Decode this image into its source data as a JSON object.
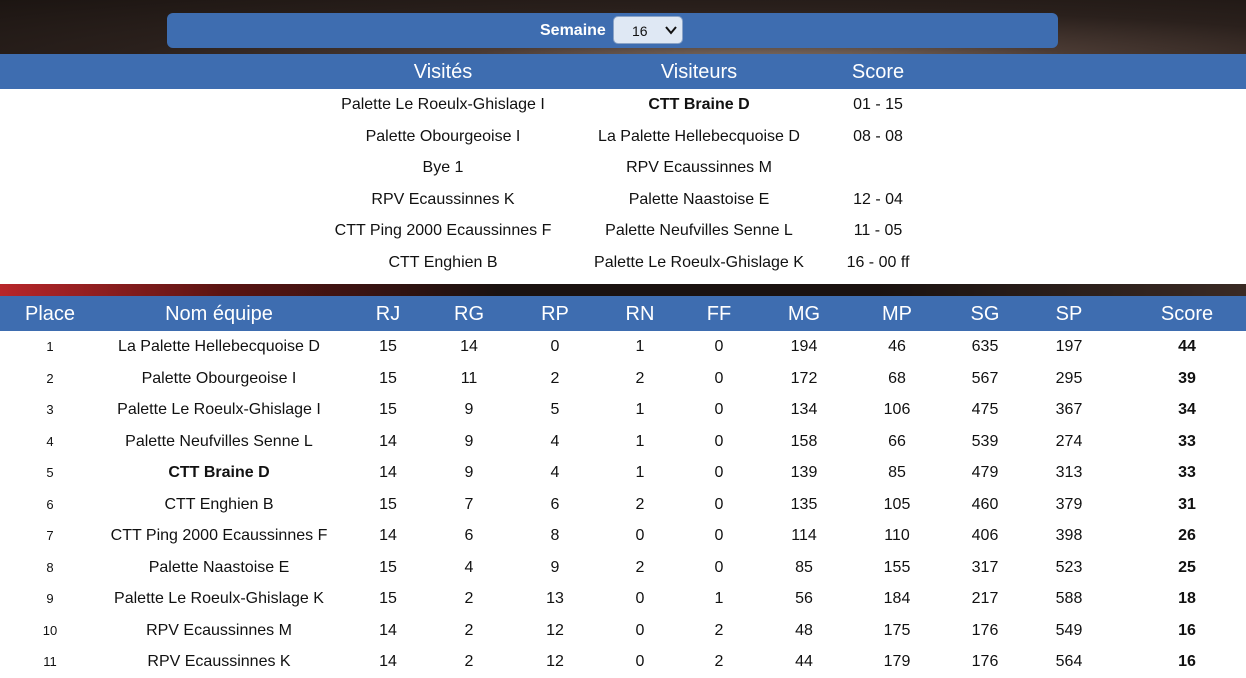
{
  "week": {
    "label": "Semaine",
    "value": "16"
  },
  "matches_header": {
    "home": "Visités",
    "away": "Visiteurs",
    "score": "Score"
  },
  "matches": [
    {
      "home": "Palette Le Roeulx-Ghislage I",
      "away": "CTT Braine D",
      "score": "01 - 15",
      "away_bold": true
    },
    {
      "home": "Palette Obourgeoise I",
      "away": "La Palette Hellebecquoise D",
      "score": "08 - 08"
    },
    {
      "home": "Bye 1",
      "away": "RPV Ecaussinnes M",
      "score": ""
    },
    {
      "home": "RPV Ecaussinnes K",
      "away": "Palette Naastoise E",
      "score": "12 - 04"
    },
    {
      "home": "CTT Ping 2000 Ecaussinnes F",
      "away": "Palette Neufvilles Senne L",
      "score": "11 - 05"
    },
    {
      "home": "CTT Enghien B",
      "away": "Palette Le Roeulx-Ghislage K",
      "score": "16 - 00 ff"
    }
  ],
  "ranking_header": {
    "place": "Place",
    "team": "Nom équipe",
    "rj": "RJ",
    "rg": "RG",
    "rp": "RP",
    "rn": "RN",
    "ff": "FF",
    "mg": "MG",
    "mp": "MP",
    "sg": "SG",
    "sp": "SP",
    "score": "Score"
  },
  "ranking": [
    {
      "place": "1",
      "team": "La Palette Hellebecquoise D",
      "rj": "15",
      "rg": "14",
      "rp": "0",
      "rn": "1",
      "ff": "0",
      "mg": "194",
      "mp": "46",
      "sg": "635",
      "sp": "197",
      "score": "44"
    },
    {
      "place": "2",
      "team": "Palette Obourgeoise I",
      "rj": "15",
      "rg": "11",
      "rp": "2",
      "rn": "2",
      "ff": "0",
      "mg": "172",
      "mp": "68",
      "sg": "567",
      "sp": "295",
      "score": "39"
    },
    {
      "place": "3",
      "team": "Palette Le Roeulx-Ghislage I",
      "rj": "15",
      "rg": "9",
      "rp": "5",
      "rn": "1",
      "ff": "0",
      "mg": "134",
      "mp": "106",
      "sg": "475",
      "sp": "367",
      "score": "34"
    },
    {
      "place": "4",
      "team": "Palette Neufvilles Senne L",
      "rj": "14",
      "rg": "9",
      "rp": "4",
      "rn": "1",
      "ff": "0",
      "mg": "158",
      "mp": "66",
      "sg": "539",
      "sp": "274",
      "score": "33"
    },
    {
      "place": "5",
      "team": "CTT Braine D",
      "rj": "14",
      "rg": "9",
      "rp": "4",
      "rn": "1",
      "ff": "0",
      "mg": "139",
      "mp": "85",
      "sg": "479",
      "sp": "313",
      "score": "33",
      "team_bold": true
    },
    {
      "place": "6",
      "team": "CTT Enghien B",
      "rj": "15",
      "rg": "7",
      "rp": "6",
      "rn": "2",
      "ff": "0",
      "mg": "135",
      "mp": "105",
      "sg": "460",
      "sp": "379",
      "score": "31"
    },
    {
      "place": "7",
      "team": "CTT Ping 2000 Ecaussinnes F",
      "rj": "14",
      "rg": "6",
      "rp": "8",
      "rn": "0",
      "ff": "0",
      "mg": "114",
      "mp": "110",
      "sg": "406",
      "sp": "398",
      "score": "26"
    },
    {
      "place": "8",
      "team": "Palette Naastoise E",
      "rj": "15",
      "rg": "4",
      "rp": "9",
      "rn": "2",
      "ff": "0",
      "mg": "85",
      "mp": "155",
      "sg": "317",
      "sp": "523",
      "score": "25"
    },
    {
      "place": "9",
      "team": "Palette Le Roeulx-Ghislage K",
      "rj": "15",
      "rg": "2",
      "rp": "13",
      "rn": "0",
      "ff": "1",
      "mg": "56",
      "mp": "184",
      "sg": "217",
      "sp": "588",
      "score": "18"
    },
    {
      "place": "10",
      "team": "RPV Ecaussinnes M",
      "rj": "14",
      "rg": "2",
      "rp": "12",
      "rn": "0",
      "ff": "2",
      "mg": "48",
      "mp": "175",
      "sg": "176",
      "sp": "549",
      "score": "16"
    },
    {
      "place": "11",
      "team": "RPV Ecaussinnes K",
      "rj": "14",
      "rg": "2",
      "rp": "12",
      "rn": "0",
      "ff": "2",
      "mg": "44",
      "mp": "179",
      "sg": "176",
      "sp": "564",
      "score": "16"
    }
  ],
  "colors": {
    "header_blue": "#3e6db0",
    "select_bg": "#dfe8f4"
  },
  "icons": {
    "select_chevron": "chevron-down-icon"
  }
}
